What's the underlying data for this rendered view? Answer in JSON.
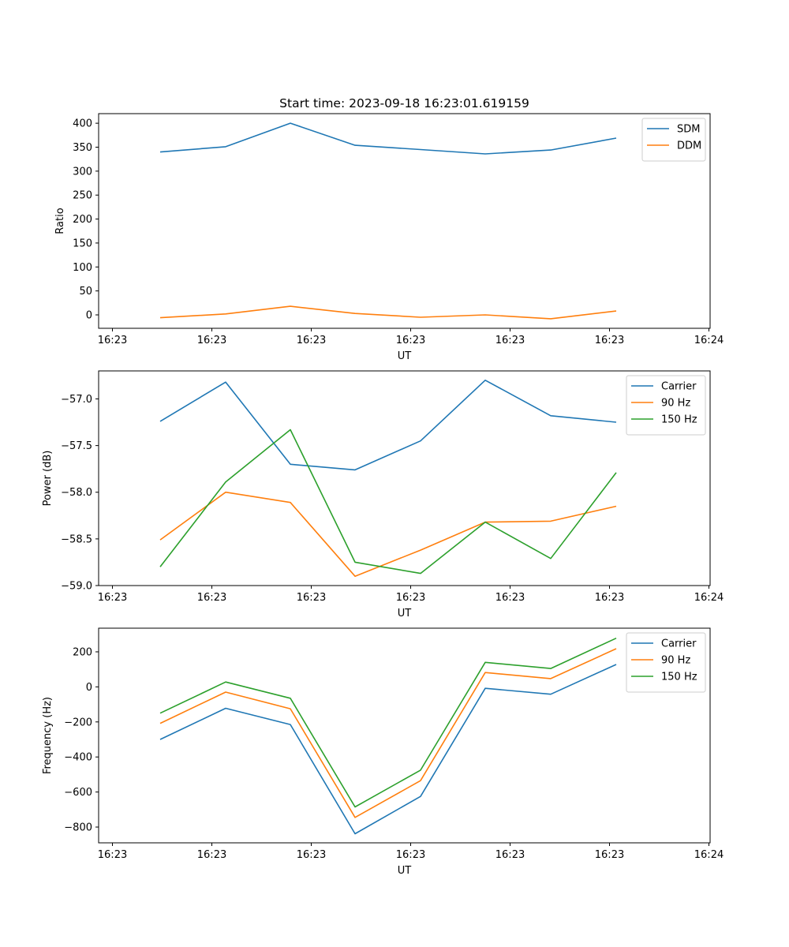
{
  "title": "Start time: 2023-09-18 16:23:01.619159",
  "colors": {
    "blue": "#1f77b4",
    "orange": "#ff7f0e",
    "green": "#2ca02c"
  },
  "chart_data": [
    {
      "type": "line",
      "ylabel": "Ratio",
      "xlabel": "UT",
      "x_tick_labels": [
        "16:23",
        "16:23",
        "16:23",
        "16:23",
        "16:23",
        "16:23",
        "16:24"
      ],
      "ylim": [
        -28,
        420
      ],
      "y_ticks": [
        0,
        50,
        100,
        150,
        200,
        250,
        300,
        350,
        400
      ],
      "y_tick_labels": [
        "0",
        "50",
        "100",
        "150",
        "200",
        "250",
        "300",
        "350",
        "400"
      ],
      "legend_position": "top-right",
      "series": [
        {
          "name": "SDM",
          "color": "#1f77b4",
          "values": [
            340,
            351,
            400,
            354,
            345,
            336,
            344,
            369
          ]
        },
        {
          "name": "DDM",
          "color": "#ff7f0e",
          "values": [
            -6,
            2,
            18,
            3,
            -5,
            0,
            -8,
            8
          ]
        }
      ]
    },
    {
      "type": "line",
      "ylabel": "Power (dB)",
      "xlabel": "UT",
      "x_tick_labels": [
        "16:23",
        "16:23",
        "16:23",
        "16:23",
        "16:23",
        "16:23",
        "16:24"
      ],
      "ylim": [
        -59.0,
        -56.7
      ],
      "y_ticks": [
        -59.0,
        -58.5,
        -58.0,
        -57.5,
        -57.0
      ],
      "y_tick_labels": [
        "−59.0",
        "−58.5",
        "−58.0",
        "−57.5",
        "−57.0"
      ],
      "legend_position": "top-right",
      "series": [
        {
          "name": "Carrier",
          "color": "#1f77b4",
          "values": [
            -57.24,
            -56.82,
            -57.7,
            -57.76,
            -57.45,
            -56.8,
            -57.18,
            -57.25
          ]
        },
        {
          "name": "90 Hz",
          "color": "#ff7f0e",
          "values": [
            -58.51,
            -58.0,
            -58.11,
            -58.9,
            -58.62,
            -58.32,
            -58.31,
            -58.15
          ]
        },
        {
          "name": "150 Hz",
          "color": "#2ca02c",
          "values": [
            -58.8,
            -57.89,
            -57.33,
            -58.75,
            -58.87,
            -58.32,
            -58.71,
            -57.79
          ]
        }
      ]
    },
    {
      "type": "line",
      "ylabel": "Frequency (Hz)",
      "xlabel": "UT",
      "x_tick_labels": [
        "16:23",
        "16:23",
        "16:23",
        "16:23",
        "16:23",
        "16:23",
        "16:24"
      ],
      "ylim": [
        -890,
        335
      ],
      "y_ticks": [
        -800,
        -600,
        -400,
        -200,
        0,
        200
      ],
      "y_tick_labels": [
        "−800",
        "−600",
        "−400",
        "−200",
        "0",
        "200"
      ],
      "legend_position": "top-right",
      "series": [
        {
          "name": "Carrier",
          "color": "#1f77b4",
          "values": [
            -300,
            -122,
            -215,
            -838,
            -625,
            -8,
            -42,
            128
          ]
        },
        {
          "name": "90 Hz",
          "color": "#ff7f0e",
          "values": [
            -208,
            -30,
            -125,
            -745,
            -535,
            82,
            47,
            218
          ]
        },
        {
          "name": "150 Hz",
          "color": "#2ca02c",
          "values": [
            -150,
            28,
            -65,
            -685,
            -475,
            140,
            105,
            278
          ]
        }
      ]
    }
  ]
}
